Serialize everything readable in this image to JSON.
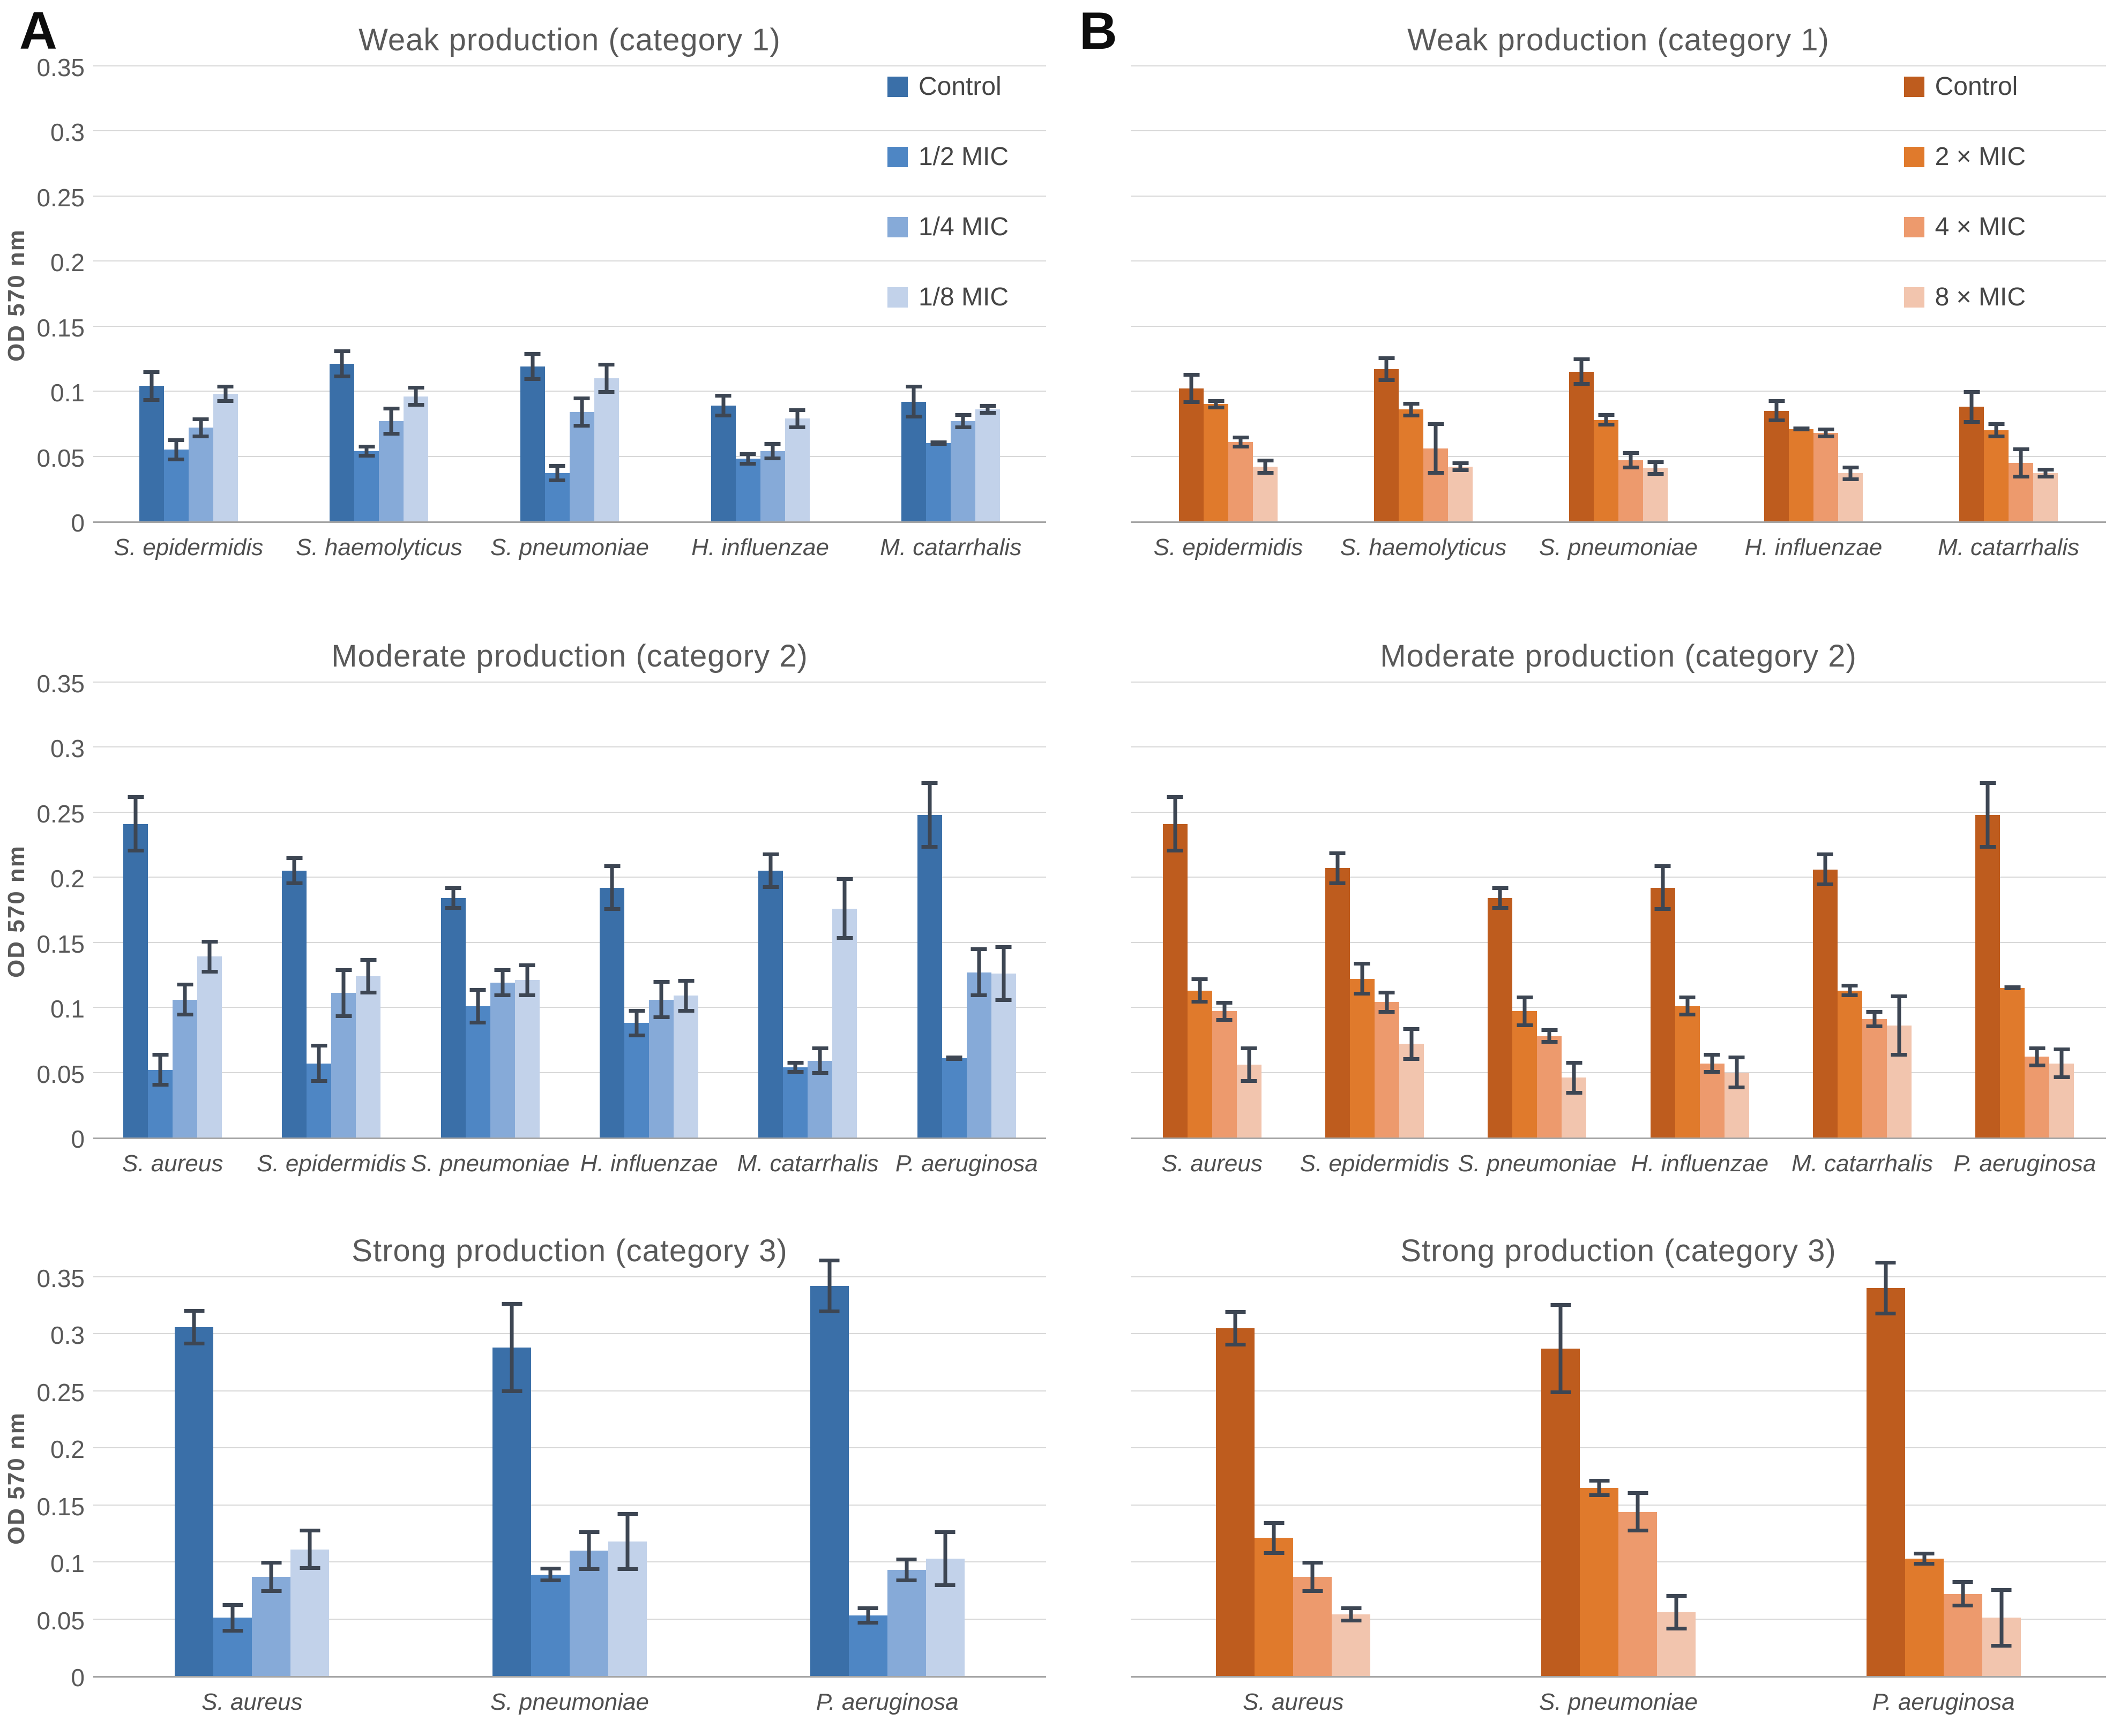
{
  "figure": {
    "y_axis_title": "OD 570 nm",
    "y_ticks": [
      "0",
      "0.05",
      "0.1",
      "0.15",
      "0.2",
      "0.25",
      "0.3",
      "0.35"
    ],
    "error_bar_color": "#3D4653",
    "gridline_color": "#D8D8D8",
    "schemes": {
      "blue": [
        "#3A6FA8",
        "#4E86C4",
        "#86AAD8",
        "#C2D2EA"
      ],
      "orange": [
        "#BE5C1E",
        "#E07A2C",
        "#ED9A6D",
        "#F2C5AE"
      ]
    }
  },
  "chart_data": [
    {
      "id": "A1",
      "type": "bar",
      "panel_letter": "A",
      "column": "A",
      "row": 1,
      "title": "Weak production (category 1)",
      "ylabel": "OD 570 nm",
      "ylim": [
        0,
        0.35
      ],
      "grid": true,
      "show_legend": true,
      "legend_position": "top-right",
      "show_y_axis": true,
      "categories": [
        "S. epidermidis",
        "S. haemolyticus",
        "S. pneumoniae",
        "H. influenzae",
        "M. catarrhalis"
      ],
      "series": [
        {
          "name": "Control",
          "color": "#3A6FA8",
          "values": [
            0.104,
            0.121,
            0.119,
            0.089,
            0.092
          ],
          "errors": [
            0.012,
            0.011,
            0.011,
            0.009,
            0.013
          ]
        },
        {
          "name": "1/2 MIC",
          "color": "#4E86C4",
          "values": [
            0.055,
            0.054,
            0.037,
            0.048,
            0.06
          ],
          "errors": [
            0.009,
            0.005,
            0.007,
            0.005,
            0.002
          ]
        },
        {
          "name": "1/4 MIC",
          "color": "#86AAD8",
          "values": [
            0.072,
            0.077,
            0.084,
            0.054,
            0.077
          ],
          "errors": [
            0.008,
            0.011,
            0.012,
            0.007,
            0.006
          ]
        },
        {
          "name": "1/8 MIC",
          "color": "#C2D2EA",
          "values": [
            0.098,
            0.096,
            0.11,
            0.079,
            0.086
          ],
          "errors": [
            0.007,
            0.008,
            0.012,
            0.008,
            0.004
          ]
        }
      ]
    },
    {
      "id": "B1",
      "type": "bar",
      "panel_letter": "B",
      "column": "B",
      "row": 1,
      "title": "Weak production (category 1)",
      "ylabel": "",
      "ylim": [
        0,
        0.35
      ],
      "grid": true,
      "show_legend": true,
      "legend_position": "top-right",
      "show_y_axis": false,
      "categories": [
        "S. epidermidis",
        "S. haemolyticus",
        "S. pneumoniae",
        "H. influenzae",
        "M. catarrhalis"
      ],
      "series": [
        {
          "name": "Control",
          "color": "#BE5C1E",
          "values": [
            0.102,
            0.117,
            0.115,
            0.085,
            0.088
          ],
          "errors": [
            0.012,
            0.01,
            0.011,
            0.009,
            0.013
          ]
        },
        {
          "name": "2 × MIC",
          "color": "#E07A2C",
          "values": [
            0.09,
            0.086,
            0.078,
            0.071,
            0.07
          ],
          "errors": [
            0.004,
            0.006,
            0.005,
            0.002,
            0.006
          ]
        },
        {
          "name": "4 × MIC",
          "color": "#ED9A6D",
          "values": [
            0.061,
            0.056,
            0.047,
            0.068,
            0.045
          ],
          "errors": [
            0.005,
            0.02,
            0.007,
            0.004,
            0.012
          ]
        },
        {
          "name": "8 × MIC",
          "color": "#F2C5AE",
          "values": [
            0.042,
            0.042,
            0.041,
            0.037,
            0.037
          ],
          "errors": [
            0.006,
            0.004,
            0.006,
            0.006,
            0.004
          ]
        }
      ]
    },
    {
      "id": "A2",
      "type": "bar",
      "panel_letter": "",
      "column": "A",
      "row": 2,
      "title": "Moderate production (category 2)",
      "ylabel": "OD 570 nm",
      "ylim": [
        0,
        0.35
      ],
      "grid": true,
      "show_legend": false,
      "legend_position": null,
      "show_y_axis": true,
      "categories": [
        "S. aureus",
        "S. epidermidis",
        "S. pneumoniae",
        "H. influenzae",
        "M. catarrhalis",
        "P. aeruginosa"
      ],
      "series": [
        {
          "name": "Control",
          "color": "#3A6FA8",
          "values": [
            0.241,
            0.205,
            0.184,
            0.192,
            0.205,
            0.248
          ],
          "errors": [
            0.022,
            0.011,
            0.009,
            0.018,
            0.014,
            0.026
          ]
        },
        {
          "name": "1/2 MIC",
          "color": "#4E86C4",
          "values": [
            0.052,
            0.057,
            0.101,
            0.088,
            0.054,
            0.061
          ],
          "errors": [
            0.013,
            0.015,
            0.014,
            0.011,
            0.005,
            0.002
          ]
        },
        {
          "name": "1/4 MIC",
          "color": "#86AAD8",
          "values": [
            0.106,
            0.111,
            0.119,
            0.106,
            0.059,
            0.127
          ],
          "errors": [
            0.013,
            0.019,
            0.011,
            0.015,
            0.011,
            0.019
          ]
        },
        {
          "name": "1/8 MIC",
          "color": "#C2D2EA",
          "values": [
            0.139,
            0.124,
            0.121,
            0.109,
            0.176,
            0.126
          ],
          "errors": [
            0.013,
            0.014,
            0.013,
            0.013,
            0.024,
            0.022
          ]
        }
      ]
    },
    {
      "id": "B2",
      "type": "bar",
      "panel_letter": "",
      "column": "B",
      "row": 2,
      "title": "Moderate production (category 2)",
      "ylabel": "",
      "ylim": [
        0,
        0.35
      ],
      "grid": true,
      "show_legend": false,
      "legend_position": null,
      "show_y_axis": false,
      "categories": [
        "S. aureus",
        "S. epidermidis",
        "S. pneumoniae",
        "H. influenzae",
        "M. catarrhalis",
        "P. aeruginosa"
      ],
      "series": [
        {
          "name": "Control",
          "color": "#BE5C1E",
          "values": [
            0.241,
            0.207,
            0.184,
            0.192,
            0.206,
            0.248
          ],
          "errors": [
            0.022,
            0.013,
            0.009,
            0.018,
            0.013,
            0.026
          ]
        },
        {
          "name": "2 × MIC",
          "color": "#E07A2C",
          "values": [
            0.113,
            0.122,
            0.097,
            0.101,
            0.113,
            0.115
          ],
          "errors": [
            0.01,
            0.013,
            0.012,
            0.008,
            0.005,
            0.001
          ]
        },
        {
          "name": "4 × MIC",
          "color": "#ED9A6D",
          "values": [
            0.097,
            0.104,
            0.078,
            0.057,
            0.091,
            0.062
          ],
          "errors": [
            0.008,
            0.009,
            0.006,
            0.008,
            0.007,
            0.008
          ]
        },
        {
          "name": "8 × MIC",
          "color": "#F2C5AE",
          "values": [
            0.056,
            0.072,
            0.046,
            0.05,
            0.086,
            0.057
          ],
          "errors": [
            0.014,
            0.013,
            0.013,
            0.013,
            0.024,
            0.012
          ]
        }
      ]
    },
    {
      "id": "A3",
      "type": "bar",
      "panel_letter": "",
      "column": "A",
      "row": 3,
      "title": "Strong production (category 3)",
      "ylabel": "OD 570 nm",
      "ylim": [
        0,
        0.35
      ],
      "grid": true,
      "show_legend": false,
      "legend_position": null,
      "show_y_axis": true,
      "categories": [
        "S. aureus",
        "S. pneumoniae",
        "P. aeruginosa"
      ],
      "series": [
        {
          "name": "Control",
          "color": "#3A6FA8",
          "values": [
            0.306,
            0.288,
            0.342
          ],
          "errors": [
            0.016,
            0.04,
            0.024
          ]
        },
        {
          "name": "1/2 MIC",
          "color": "#4E86C4",
          "values": [
            0.051,
            0.089,
            0.053
          ],
          "errors": [
            0.013,
            0.007,
            0.008
          ]
        },
        {
          "name": "1/4 MIC",
          "color": "#86AAD8",
          "values": [
            0.087,
            0.11,
            0.093
          ],
          "errors": [
            0.014,
            0.018,
            0.011
          ]
        },
        {
          "name": "1/8 MIC",
          "color": "#C2D2EA",
          "values": [
            0.111,
            0.118,
            0.103
          ],
          "errors": [
            0.018,
            0.026,
            0.025
          ]
        }
      ]
    },
    {
      "id": "B3",
      "type": "bar",
      "panel_letter": "",
      "column": "B",
      "row": 3,
      "title": "Strong production (category 3)",
      "ylabel": "",
      "ylim": [
        0,
        0.35
      ],
      "grid": true,
      "show_legend": false,
      "legend_position": null,
      "show_y_axis": false,
      "categories": [
        "S. aureus",
        "S. pneumoniae",
        "P. aeruginosa"
      ],
      "series": [
        {
          "name": "Control",
          "color": "#BE5C1E",
          "values": [
            0.305,
            0.287,
            0.34
          ],
          "errors": [
            0.016,
            0.04,
            0.024
          ]
        },
        {
          "name": "2 × MIC",
          "color": "#E07A2C",
          "values": [
            0.121,
            0.165,
            0.103
          ],
          "errors": [
            0.015,
            0.008,
            0.006
          ]
        },
        {
          "name": "4 × MIC",
          "color": "#ED9A6D",
          "values": [
            0.087,
            0.144,
            0.072
          ],
          "errors": [
            0.014,
            0.018,
            0.012
          ]
        },
        {
          "name": "8 × MIC",
          "color": "#F2C5AE",
          "values": [
            0.054,
            0.056,
            0.051
          ],
          "errors": [
            0.007,
            0.016,
            0.026
          ]
        }
      ]
    }
  ]
}
